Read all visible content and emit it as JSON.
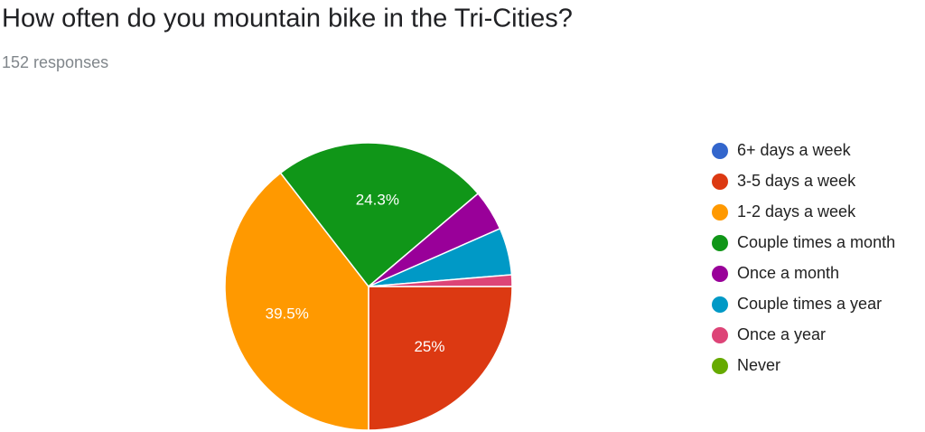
{
  "chart_data": {
    "type": "pie",
    "title": "How often do you mountain bike in the Tri-Cities?",
    "subtitle": "152 responses",
    "categories": [
      "6+ days a week",
      "3-5 days a week",
      "1-2 days a week",
      "Couple times a month",
      "Once a month",
      "Couple times a year",
      "Once a year",
      "Never"
    ],
    "values": [
      0,
      25,
      39.5,
      24.3,
      4.6,
      5.3,
      1.3,
      0
    ],
    "value_labels": [
      null,
      "25%",
      "39.5%",
      "24.3%",
      null,
      null,
      null,
      null
    ],
    "colors": [
      "#3366cc",
      "#dc3912",
      "#ff9900",
      "#109618",
      "#990099",
      "#0099c6",
      "#dd4477",
      "#66aa00"
    ],
    "legend": "right"
  }
}
